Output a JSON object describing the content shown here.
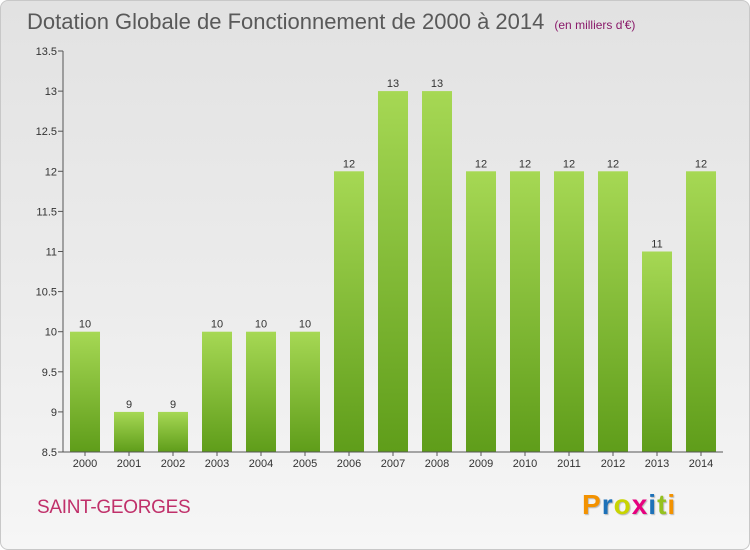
{
  "header": {
    "title": "Dotation Globale de Fonctionnement de 2000 à 2014",
    "subtitle": "(en milliers d'€)"
  },
  "footer": {
    "commune": "SAINT-GEORGES",
    "brand_letters": [
      "P",
      "r",
      "o",
      "x",
      "i",
      "t",
      "i"
    ],
    "brand_colors": [
      "#f39200",
      "#1d71b8",
      "#c8d400",
      "#e6007e",
      "#1d71b8",
      "#95c11f",
      "#f39200"
    ]
  },
  "colors": {
    "bar_top": "#a6d854",
    "bar_bottom": "#5f9d1a",
    "axis": "#555555",
    "grid": "#d4d4d4",
    "title": "#595959",
    "commune": "#c0306a"
  },
  "chart_data": {
    "type": "bar",
    "title": "Dotation Globale de Fonctionnement de 2000 à 2014",
    "subtitle": "(en milliers d'€)",
    "xlabel": "",
    "ylabel": "",
    "categories": [
      "2000",
      "2001",
      "2002",
      "2003",
      "2004",
      "2005",
      "2006",
      "2007",
      "2008",
      "2009",
      "2010",
      "2011",
      "2012",
      "2013",
      "2014"
    ],
    "values": [
      10,
      9,
      9,
      10,
      10,
      10,
      12,
      13,
      13,
      12,
      12,
      12,
      12,
      11,
      12
    ],
    "value_labels": [
      "10",
      "9",
      "9",
      "10",
      "10",
      "10",
      "12",
      "13",
      "13",
      "12",
      "12",
      "12",
      "12",
      "11",
      "12"
    ],
    "ylim": [
      8.5,
      13.5
    ],
    "yticks": [
      8.5,
      9,
      9.5,
      10,
      10.5,
      11,
      11.5,
      12,
      12.5,
      13,
      13.5
    ],
    "ytick_labels": [
      "8.5",
      "9",
      "9.5",
      "10",
      "10.5",
      "11",
      "11.5",
      "12",
      "12.5",
      "13",
      "13.5"
    ],
    "grid": false,
    "legend": "none"
  }
}
